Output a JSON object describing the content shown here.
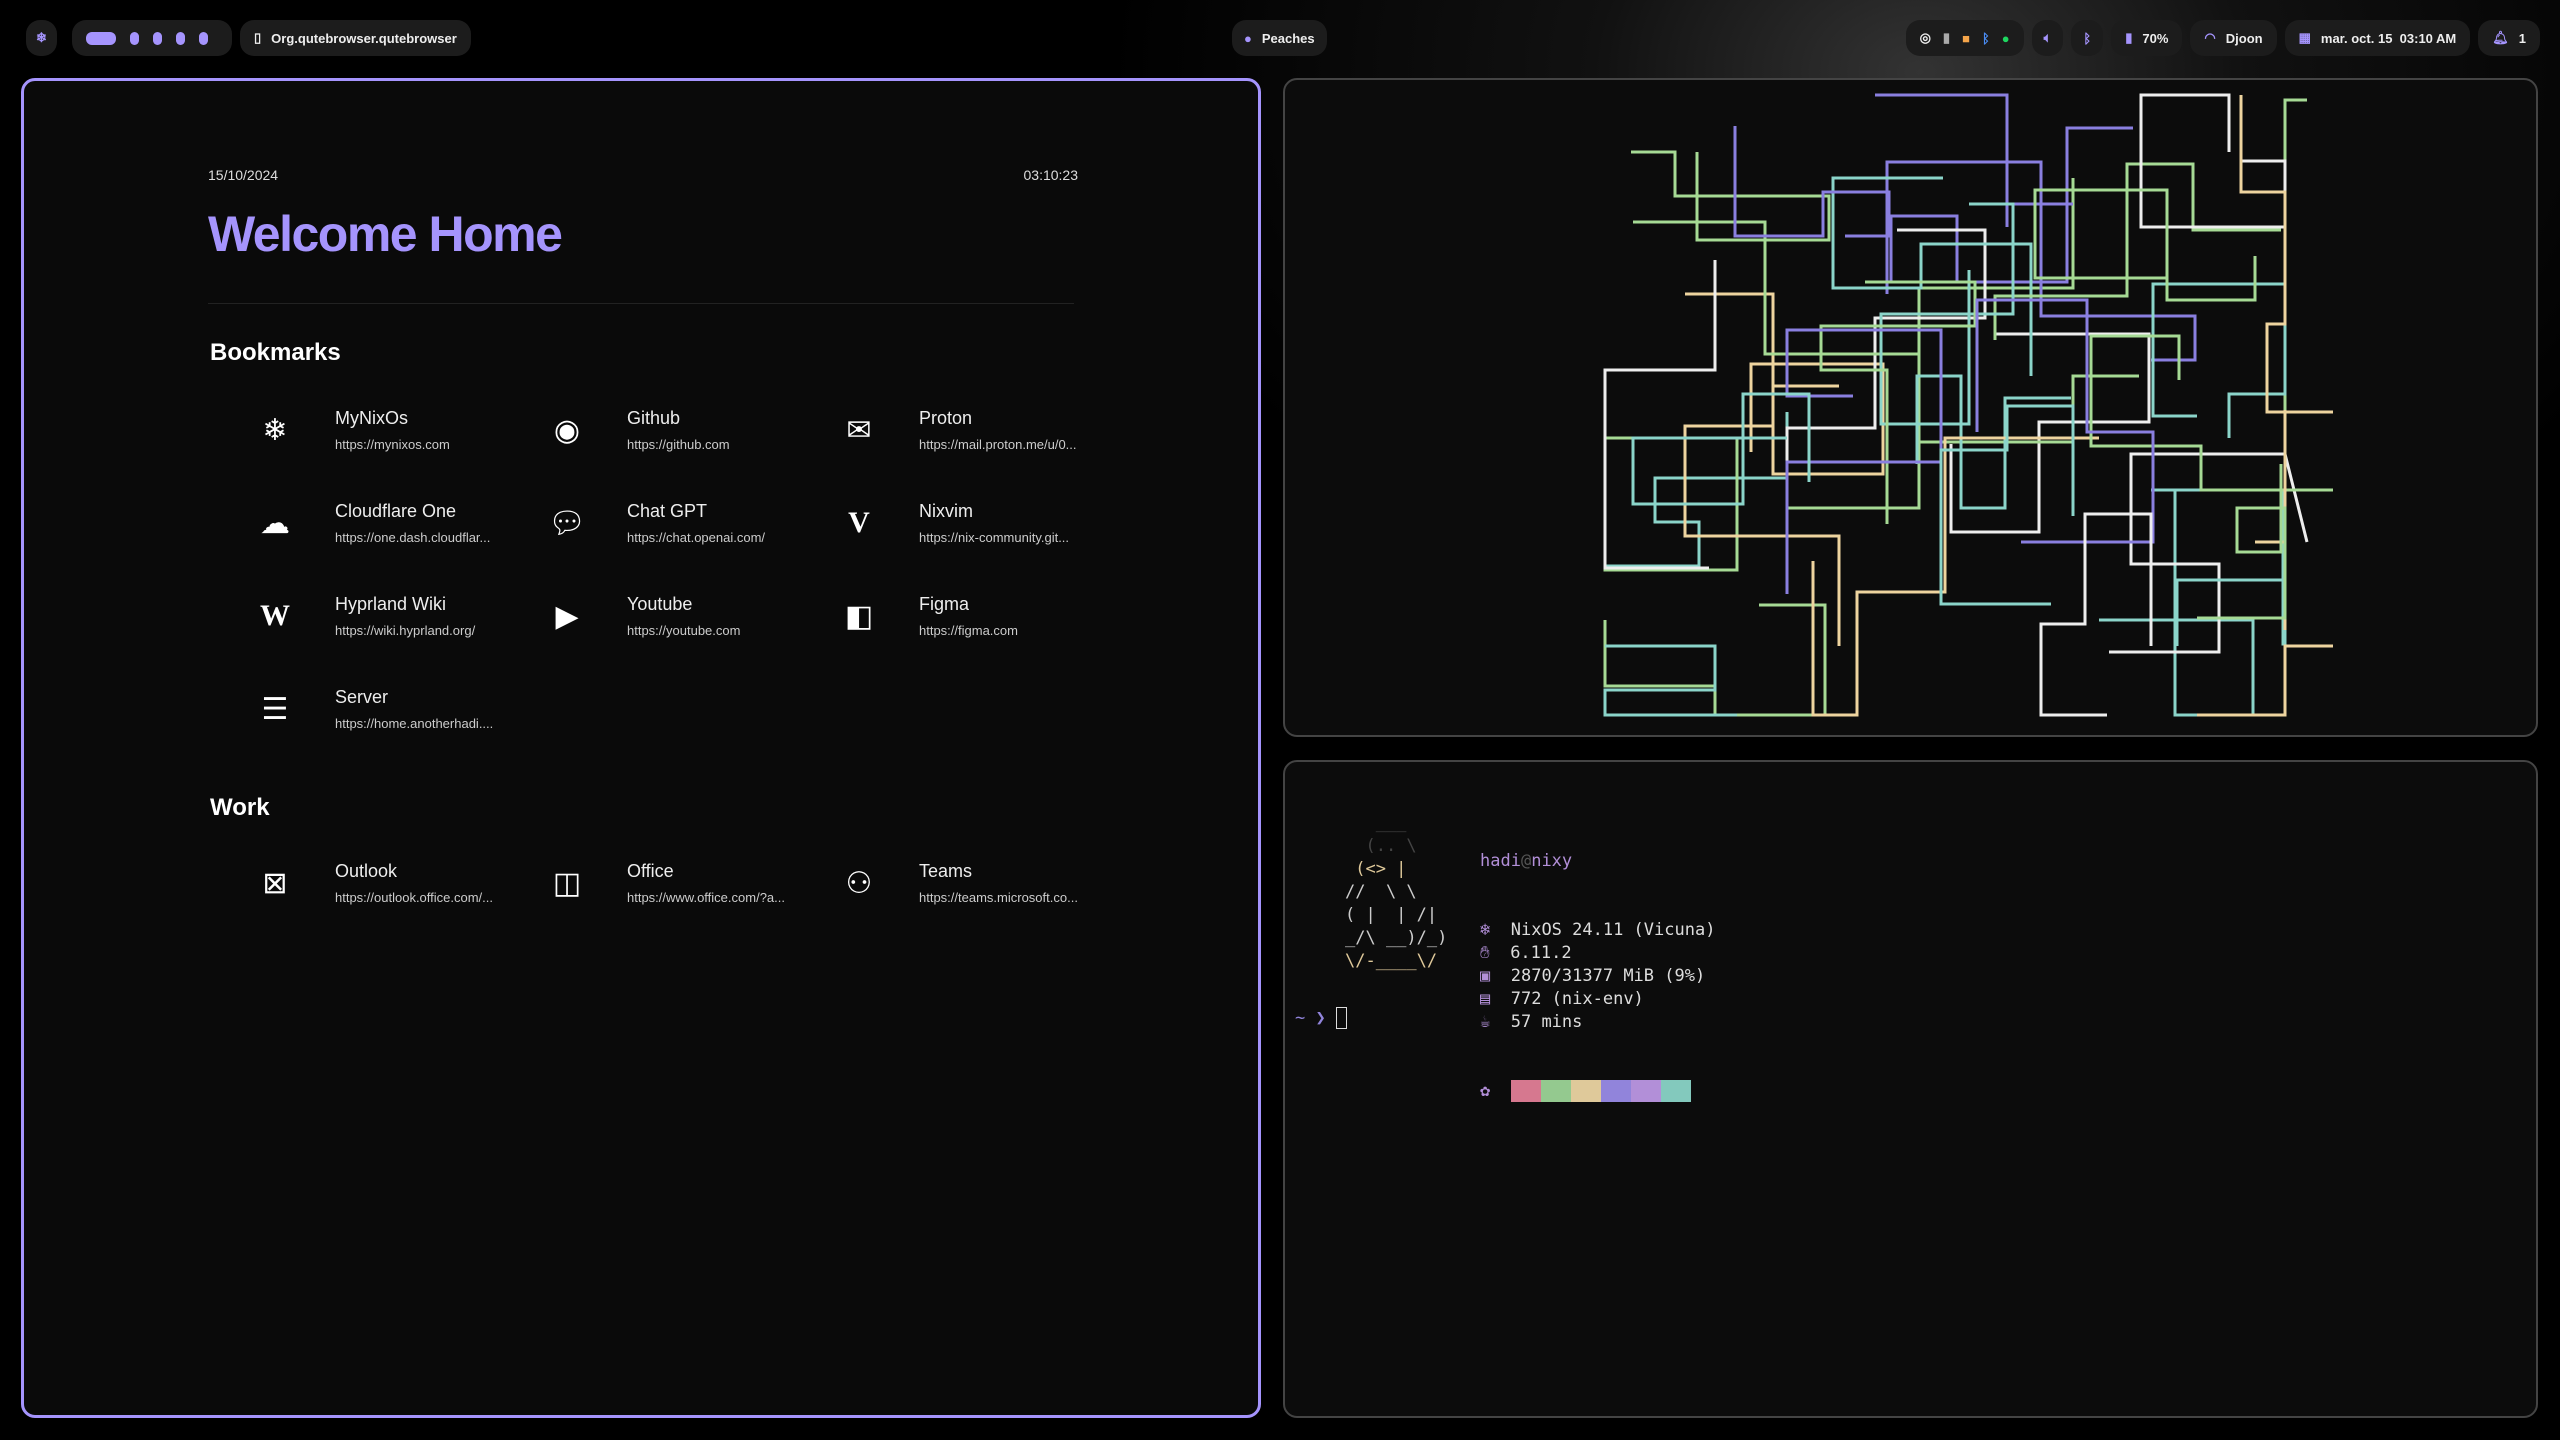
{
  "topbar": {
    "workspaces": [
      {
        "active": true
      },
      {
        "active": false
      },
      {
        "active": false
      },
      {
        "active": false
      },
      {
        "active": false
      }
    ],
    "window_title": "Org.qutebrowser.qutebrowser",
    "media": "Peaches",
    "tray_icons": [
      "obs-icon",
      "kdeconnect-icon",
      "storage-icon",
      "bluetooth-icon",
      "spotify-icon"
    ],
    "battery": "70%",
    "wifi": "Djoon",
    "datetime": "mar. oct. 15  03:10 AM",
    "notifications": "1",
    "accent": "#a594fd"
  },
  "browser": {
    "date": "15/10/2024",
    "time": "03:10:23",
    "title": "Welcome Home",
    "sections": [
      {
        "heading": "Bookmarks",
        "items": [
          {
            "name": "MyNixOs",
            "url": "https://mynixos.com",
            "icon": "nixos-snowflake-icon"
          },
          {
            "name": "Github",
            "url": "https://github.com",
            "icon": "github-icon"
          },
          {
            "name": "Proton",
            "url": "https://mail.proton.me/u/0...",
            "icon": "mail-icon"
          },
          {
            "name": "Cloudflare One",
            "url": "https://one.dash.cloudflar...",
            "icon": "cloud-icon"
          },
          {
            "name": "Chat GPT",
            "url": "https://chat.openai.com/",
            "icon": "chat-bubble-icon"
          },
          {
            "name": "Nixvim",
            "url": "https://nix-community.git...",
            "icon": "vim-icon"
          },
          {
            "name": "Hyprland Wiki",
            "url": "https://wiki.hyprland.org/",
            "icon": "wikipedia-icon"
          },
          {
            "name": "Youtube",
            "url": "https://youtube.com",
            "icon": "youtube-icon"
          },
          {
            "name": "Figma",
            "url": "https://figma.com",
            "icon": "figma-icon"
          },
          {
            "name": "Server",
            "url": "https://home.anotherhadi....",
            "icon": "server-icon"
          }
        ]
      },
      {
        "heading": "Work",
        "items": [
          {
            "name": "Outlook",
            "url": "https://outlook.office.com/...",
            "icon": "outlook-icon"
          },
          {
            "name": "Office",
            "url": "https://www.office.com/?a...",
            "icon": "office-icon"
          },
          {
            "name": "Teams",
            "url": "https://teams.microsoft.co...",
            "icon": "teams-icon"
          }
        ]
      }
    ]
  },
  "terminal": {
    "user": "hadi",
    "at": "@",
    "host": "nixy",
    "info": [
      {
        "icon": "nixos-icon",
        "text": "NixOS 24.11 (Vicuna)"
      },
      {
        "icon": "kernel-icon",
        "text": "6.11.2"
      },
      {
        "icon": "memory-icon",
        "text": "2870/31377 MiB (9%)"
      },
      {
        "icon": "package-icon",
        "text": "772 (nix-env)"
      },
      {
        "icon": "uptime-cup-icon",
        "text": "57 mins"
      }
    ],
    "palette": [
      "#d6788f",
      "#94c98f",
      "#dfc99a",
      "#9184db",
      "#b28fd8",
      "#83c9bd"
    ],
    "logo": [
      "   ___",
      "  (.. \\",
      " (<> |",
      "//  \\ \\",
      "( |  | /|",
      "_/\\ __)/_)",
      "\\/-____\\/"
    ],
    "prompt": "~ ❯"
  }
}
